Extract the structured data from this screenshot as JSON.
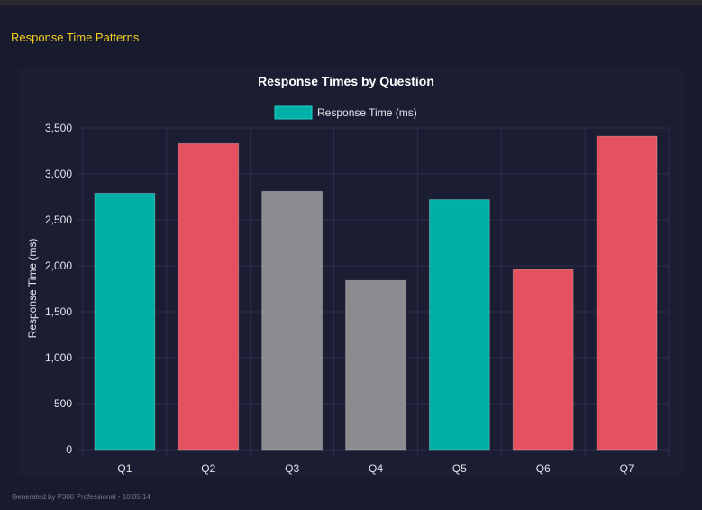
{
  "section_title": "Response Time Patterns",
  "footer": "Generated by P300 Professional - 10:05:14",
  "chart_data": {
    "type": "bar",
    "title": "Response Times by Question",
    "categories": [
      "Q1",
      "Q2",
      "Q3",
      "Q4",
      "Q5",
      "Q6",
      "Q7"
    ],
    "series": [
      {
        "name": "Response Time (ms)",
        "values": [
          2790,
          3330,
          2810,
          1840,
          2720,
          1960,
          3410
        ]
      }
    ],
    "bar_colors": [
      "#00b0a6",
      "#e5525f",
      "#8c8b90",
      "#8c8b90",
      "#00b0a6",
      "#e5525f",
      "#e5525f"
    ],
    "legend_color": "#00b0a6",
    "xlabel": "",
    "ylabel": "Response Time (ms)",
    "ylim": [
      0,
      3500
    ],
    "yticks": [
      "0",
      "500",
      "1,000",
      "1,500",
      "2,000",
      "2,500",
      "3,000",
      "3,500"
    ],
    "grid": true,
    "legend": "top"
  }
}
